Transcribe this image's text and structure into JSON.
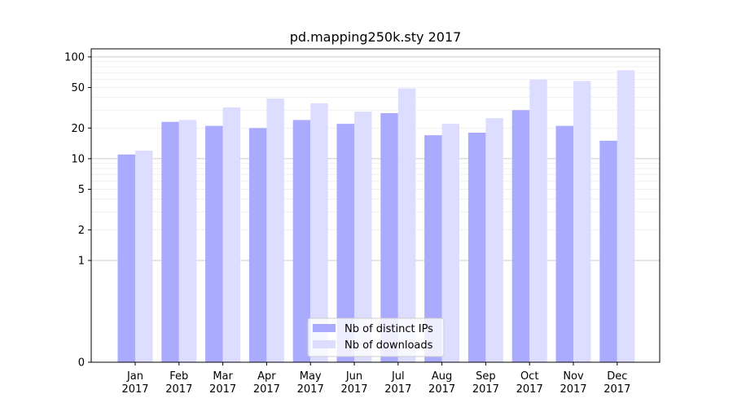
{
  "chart_data": {
    "type": "bar",
    "title": "pd.mapping250k.sty 2017",
    "xlabel": "",
    "ylabel": "",
    "y_scale": "symlog",
    "ylim": [
      0,
      120
    ],
    "y_ticks": [
      0,
      1,
      2,
      5,
      10,
      20,
      50,
      100
    ],
    "y_tick_labels": [
      "0",
      "1",
      "2",
      "5",
      "10",
      "20",
      "50",
      "100"
    ],
    "grid": true,
    "legend_position": "bottom-center",
    "categories": [
      "Jan\n2017",
      "Feb\n2017",
      "Mar\n2017",
      "Apr\n2017",
      "May\n2017",
      "Jun\n2017",
      "Jul\n2017",
      "Aug\n2017",
      "Sep\n2017",
      "Oct\n2017",
      "Nov\n2017",
      "Dec\n2017"
    ],
    "category_lines": [
      [
        "Jan",
        "2017"
      ],
      [
        "Feb",
        "2017"
      ],
      [
        "Mar",
        "2017"
      ],
      [
        "Apr",
        "2017"
      ],
      [
        "May",
        "2017"
      ],
      [
        "Jun",
        "2017"
      ],
      [
        "Jul",
        "2017"
      ],
      [
        "Aug",
        "2017"
      ],
      [
        "Sep",
        "2017"
      ],
      [
        "Oct",
        "2017"
      ],
      [
        "Nov",
        "2017"
      ],
      [
        "Dec",
        "2017"
      ]
    ],
    "series": [
      {
        "name": "Nb of distinct IPs",
        "color": "#aaaaff",
        "values": [
          11,
          23,
          21,
          20,
          24,
          22,
          28,
          17,
          18,
          30,
          21,
          15
        ]
      },
      {
        "name": "Nb of downloads",
        "color": "#ddddff",
        "values": [
          12,
          24,
          32,
          39,
          35,
          29,
          49,
          22,
          25,
          60,
          58,
          74
        ]
      }
    ]
  }
}
